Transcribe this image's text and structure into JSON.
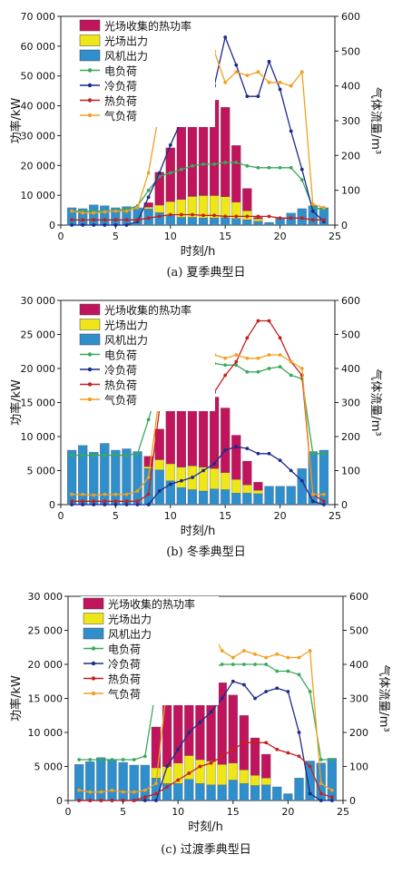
{
  "chart_data": [
    {
      "type": "bar",
      "caption": "(a) 夏季典型日",
      "xlabel": "时刻/h",
      "ylabel": "功率/kW",
      "y2label": "气体流量/m³",
      "xlim": [
        0,
        25
      ],
      "ylim": [
        0,
        70000
      ],
      "y2lim": [
        0,
        600
      ],
      "xticks": [
        "0",
        "5",
        "10",
        "15",
        "20",
        "25"
      ],
      "yticks": [
        "0",
        "10 000",
        "20 000",
        "30 000",
        "40 000",
        "50 000",
        "60 000",
        "70 000"
      ],
      "y2ticks": [
        "0",
        "100",
        "200",
        "300",
        "400",
        "500",
        "600"
      ],
      "x": [
        1,
        2,
        3,
        4,
        5,
        6,
        7,
        8,
        9,
        10,
        11,
        12,
        13,
        14,
        15,
        16,
        17,
        18,
        19,
        20,
        21,
        22,
        23,
        24
      ],
      "series": [
        {
          "name": "光场收集的热功率",
          "kind": "bar",
          "color": "#c0145c",
          "values": [
            0,
            0,
            0,
            0,
            0,
            0,
            0,
            1500,
            11000,
            18000,
            25000,
            30000,
            32000,
            32000,
            30000,
            19000,
            7500,
            500,
            0,
            0,
            0,
            0,
            0,
            0
          ]
        },
        {
          "name": "光场出力",
          "kind": "bar",
          "color": "#eee619",
          "values": [
            0,
            0,
            0,
            0,
            0,
            0,
            0,
            600,
            2500,
            4500,
            6000,
            7000,
            7500,
            7500,
            7000,
            5500,
            3000,
            800,
            0,
            0,
            0,
            0,
            0,
            0
          ]
        },
        {
          "name": "风机出力",
          "kind": "bar",
          "color": "#2f8fcc",
          "values": [
            5800,
            5500,
            6800,
            6500,
            5800,
            6200,
            5800,
            5400,
            4200,
            3400,
            2600,
            2600,
            2400,
            2400,
            2500,
            2200,
            1800,
            1300,
            900,
            2500,
            4000,
            5500,
            6500,
            5800
          ]
        },
        {
          "name": "电负荷",
          "kind": "line",
          "axis": "y2",
          "color": "#3aa95a",
          "values": [
            40,
            40,
            40,
            40,
            42,
            45,
            55,
            100,
            140,
            150,
            160,
            170,
            175,
            175,
            180,
            180,
            170,
            165,
            165,
            165,
            165,
            130,
            50,
            45
          ]
        },
        {
          "name": "冷负荷",
          "kind": "line",
          "axis": "y2",
          "color": "#1c2a8c",
          "values": [
            0,
            0,
            0,
            0,
            0,
            0,
            10,
            80,
            150,
            230,
            300,
            330,
            340,
            400,
            540,
            460,
            370,
            370,
            470,
            390,
            270,
            160,
            40,
            10
          ]
        },
        {
          "name": "热负荷",
          "kind": "line",
          "axis": "y2",
          "color": "#c42020",
          "values": [
            15,
            15,
            15,
            15,
            15,
            15,
            15,
            20,
            25,
            30,
            30,
            30,
            28,
            28,
            25,
            25,
            25,
            25,
            25,
            20,
            20,
            20,
            15,
            15
          ]
        },
        {
          "name": "气负荷",
          "kind": "line",
          "axis": "y2",
          "color": "#f0a020",
          "values": [
            40,
            35,
            35,
            38,
            40,
            40,
            50,
            150,
            330,
            350,
            410,
            470,
            480,
            500,
            410,
            440,
            430,
            440,
            410,
            410,
            400,
            440,
            60,
            50
          ]
        }
      ]
    },
    {
      "type": "bar",
      "caption": "(b) 冬季典型日",
      "xlabel": "时刻/h",
      "ylabel": "功率/kW",
      "y2label": "气体流量/m³",
      "xlim": [
        0,
        25
      ],
      "ylim": [
        0,
        30000
      ],
      "y2lim": [
        0,
        600
      ],
      "xticks": [
        "0",
        "5",
        "10",
        "15",
        "20",
        "25"
      ],
      "yticks": [
        "0",
        "5 000",
        "10 000",
        "15 000",
        "20 000",
        "25 000",
        "30 000"
      ],
      "y2ticks": [
        "0",
        "100",
        "200",
        "300",
        "400",
        "500",
        "600"
      ],
      "x": [
        1,
        2,
        3,
        4,
        5,
        6,
        7,
        8,
        9,
        10,
        11,
        12,
        13,
        14,
        15,
        16,
        17,
        18,
        19,
        20,
        21,
        22,
        23,
        24
      ],
      "series": [
        {
          "name": "光场收集的热功率",
          "kind": "bar",
          "color": "#c0145c",
          "values": [
            0,
            0,
            0,
            0,
            0,
            0,
            0,
            1500,
            4500,
            8000,
            10000,
            12000,
            12000,
            10500,
            9500,
            6500,
            3500,
            1200,
            0,
            0,
            0,
            0,
            0,
            0
          ]
        },
        {
          "name": "光场出力",
          "kind": "bar",
          "color": "#eee619",
          "values": [
            0,
            0,
            0,
            0,
            0,
            0,
            0,
            300,
            1500,
            2500,
            3000,
            3500,
            3500,
            3000,
            2500,
            2000,
            1200,
            500,
            0,
            0,
            0,
            0,
            0,
            0
          ]
        },
        {
          "name": "风机出力",
          "kind": "bar",
          "color": "#2f8fcc",
          "values": [
            8000,
            8700,
            7700,
            9000,
            8000,
            8200,
            7800,
            5300,
            5100,
            3500,
            2500,
            2200,
            2000,
            2300,
            2200,
            1700,
            1700,
            1600,
            2700,
            2700,
            2700,
            5300,
            7800,
            8000
          ]
        },
        {
          "name": "电负荷",
          "kind": "line",
          "axis": "y2",
          "color": "#3aa95a",
          "values": [
            145,
            145,
            145,
            145,
            145,
            145,
            150,
            250,
            360,
            400,
            410,
            410,
            420,
            415,
            410,
            410,
            390,
            390,
            400,
            405,
            380,
            370,
            150,
            150
          ]
        },
        {
          "name": "冷负荷",
          "kind": "line",
          "axis": "y2",
          "color": "#1c2a8c",
          "values": [
            0,
            0,
            0,
            0,
            0,
            0,
            0,
            0,
            40,
            60,
            70,
            80,
            100,
            120,
            160,
            170,
            165,
            150,
            150,
            130,
            100,
            70,
            10,
            0
          ]
        },
        {
          "name": "热负荷",
          "kind": "line",
          "axis": "y2",
          "color": "#c42020",
          "values": [
            10,
            10,
            10,
            10,
            10,
            10,
            10,
            30,
            280,
            380,
            480,
            460,
            380,
            330,
            380,
            420,
            490,
            540,
            540,
            490,
            420,
            380,
            30,
            10
          ]
        },
        {
          "name": "气负荷",
          "kind": "line",
          "axis": "y2",
          "color": "#f0a020",
          "values": [
            30,
            30,
            28,
            30,
            30,
            30,
            40,
            80,
            320,
            360,
            460,
            480,
            500,
            440,
            430,
            440,
            430,
            430,
            440,
            440,
            420,
            400,
            30,
            30
          ]
        }
      ]
    },
    {
      "type": "bar",
      "caption": "(c) 过渡季典型日",
      "xlabel": "时刻/h",
      "ylabel": "功率/kW",
      "y2label": "气体流量/m³",
      "xlim": [
        0,
        25
      ],
      "ylim": [
        0,
        30000
      ],
      "y2lim": [
        0,
        600
      ],
      "xticks": [
        "0",
        "5",
        "10",
        "15",
        "20",
        "25"
      ],
      "yticks": [
        "0",
        "5 000",
        "10 000",
        "15 000",
        "20 000",
        "25 000",
        "30 000"
      ],
      "y2ticks": [
        "0",
        "100",
        "200",
        "300",
        "400",
        "500",
        "600"
      ],
      "x": [
        1,
        2,
        3,
        4,
        5,
        6,
        7,
        8,
        9,
        10,
        11,
        12,
        13,
        14,
        15,
        16,
        17,
        18,
        19,
        20,
        21,
        22,
        23,
        24
      ],
      "series": [
        {
          "name": "光场收集的热功率",
          "kind": "bar",
          "color": "#c0145c",
          "values": [
            0,
            0,
            0,
            0,
            0,
            0,
            0,
            6000,
            11000,
            13000,
            15000,
            16000,
            16000,
            12000,
            10000,
            8000,
            5500,
            3500,
            0,
            0,
            0,
            0,
            0,
            0
          ]
        },
        {
          "name": "光场出力",
          "kind": "bar",
          "color": "#eee619",
          "values": [
            0,
            0,
            0,
            0,
            0,
            0,
            0,
            1500,
            2500,
            3000,
            3500,
            3500,
            3500,
            3000,
            2500,
            2000,
            1500,
            1000,
            0,
            0,
            0,
            0,
            0,
            0
          ]
        },
        {
          "name": "风机出力",
          "kind": "bar",
          "color": "#2f8fcc",
          "values": [
            5300,
            5700,
            6300,
            6000,
            5600,
            5200,
            5200,
            3300,
            2500,
            2500,
            3100,
            2500,
            2300,
            2300,
            3000,
            2500,
            2200,
            2300,
            2000,
            1000,
            3300,
            5800,
            5500,
            6200
          ]
        },
        {
          "name": "电负荷",
          "kind": "line",
          "axis": "y2",
          "color": "#3aa95a",
          "values": [
            120,
            120,
            120,
            120,
            120,
            120,
            130,
            330,
            350,
            390,
            390,
            390,
            390,
            400,
            400,
            400,
            400,
            400,
            380,
            380,
            370,
            320,
            120,
            120
          ]
        },
        {
          "name": "冷负荷",
          "kind": "line",
          "axis": "y2",
          "color": "#1c2a8c",
          "values": [
            0,
            0,
            0,
            0,
            0,
            0,
            0,
            0,
            100,
            150,
            200,
            230,
            260,
            300,
            350,
            340,
            300,
            320,
            330,
            320,
            200,
            20,
            0,
            0
          ]
        },
        {
          "name": "热负荷",
          "kind": "line",
          "axis": "y2",
          "color": "#c42020",
          "values": [
            0,
            0,
            0,
            0,
            0,
            0,
            10,
            20,
            40,
            60,
            80,
            100,
            110,
            130,
            150,
            170,
            170,
            170,
            150,
            140,
            130,
            100,
            20,
            10
          ]
        },
        {
          "name": "气负荷",
          "kind": "line",
          "axis": "y2",
          "color": "#f0a020",
          "values": [
            30,
            25,
            25,
            30,
            25,
            25,
            30,
            50,
            340,
            420,
            460,
            480,
            500,
            440,
            420,
            440,
            430,
            420,
            430,
            420,
            420,
            440,
            50,
            30
          ]
        }
      ]
    }
  ]
}
